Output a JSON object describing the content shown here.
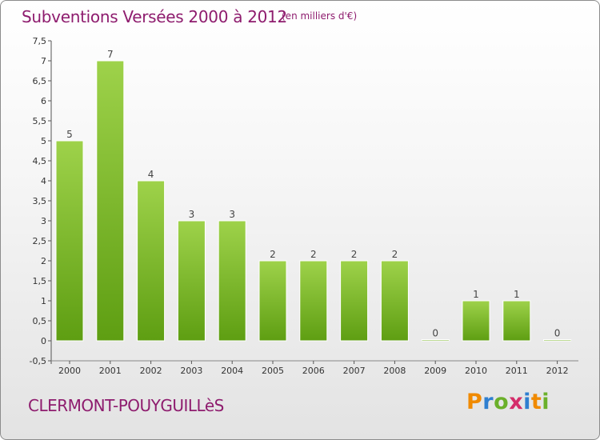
{
  "header": {
    "title": "Subventions Versées 2000 à 2012",
    "unit": "(en milliers d'€)"
  },
  "footer": {
    "commune": "CLERMONT-POUYGUILLèS",
    "brand": "Proxiti",
    "brand_colors": [
      "#f08a00",
      "#2f7fd0",
      "#6bb02a",
      "#d42d6a",
      "#2f7fd0",
      "#f08a00",
      "#6bb02a"
    ]
  },
  "chart_data": {
    "type": "bar",
    "categories": [
      "2000",
      "2001",
      "2002",
      "2003",
      "2004",
      "2005",
      "2006",
      "2007",
      "2008",
      "2009",
      "2010",
      "2011",
      "2012"
    ],
    "values": [
      5,
      7,
      4,
      3,
      3,
      2,
      2,
      2,
      2,
      0,
      1,
      1,
      0
    ],
    "data_labels": [
      "5",
      "7",
      "4",
      "3",
      "3",
      "2",
      "2",
      "2",
      "2",
      "0",
      "1",
      "1",
      "0"
    ],
    "title": "Subventions Versées 2000 à 2012",
    "subtitle": "(en milliers d'€)",
    "ylim": [
      -0.5,
      7.5
    ],
    "yticks": [
      "-0,5",
      "0",
      "0,5",
      "1",
      "1,5",
      "2",
      "2,5",
      "3",
      "3,5",
      "4",
      "4,5",
      "5",
      "5,5",
      "6",
      "6,5",
      "7",
      "7,5"
    ],
    "grid": false,
    "legend": "none",
    "bar_color": "#6fb52c"
  }
}
